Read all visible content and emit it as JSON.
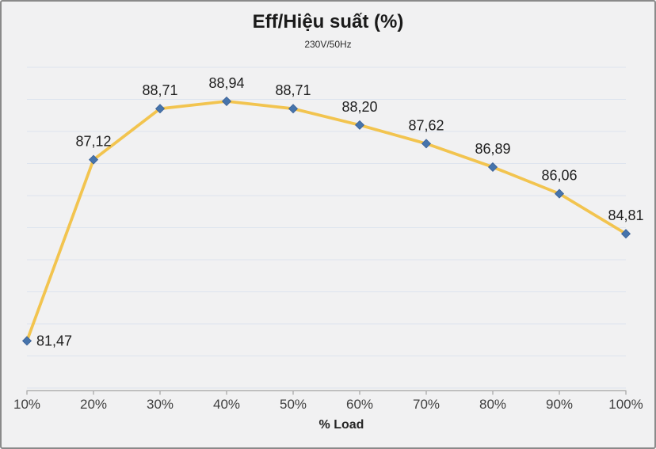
{
  "chart": {
    "title": "Eff/Hiệu suất (%)",
    "subtitle": "230V/50Hz",
    "xlabel": "% Load"
  },
  "chart_data": {
    "type": "line",
    "title": "Eff/Hiệu suất (%)",
    "subtitle": "230V/50Hz",
    "xlabel": "% Load",
    "ylabel": "",
    "categories": [
      "10%",
      "20%",
      "30%",
      "40%",
      "50%",
      "60%",
      "70%",
      "80%",
      "90%",
      "100%"
    ],
    "series": [
      {
        "name": "Eff/Hiệu suất (%) 230V/50Hz",
        "values": [
          81.47,
          87.12,
          88.71,
          88.94,
          88.71,
          88.2,
          87.62,
          86.89,
          86.06,
          84.81
        ]
      }
    ],
    "data_labels": [
      "81,47",
      "87,12",
      "88,71",
      "88,94",
      "88,71",
      "88,20",
      "87,62",
      "86,89",
      "86,06",
      "84,81"
    ],
    "label_positions": [
      "right",
      "above",
      "above",
      "above",
      "above",
      "above",
      "above",
      "above",
      "above",
      "above"
    ],
    "ylim": [
      80,
      90
    ],
    "y_gridline_step": 1,
    "y_axis_labels_visible": false,
    "grid": "horizontal",
    "legend_position": "none",
    "marker": "diamond",
    "colors": {
      "line": "#F2C44F",
      "marker_fill": "#4674AC",
      "marker_edge": "#3A5E93",
      "gridline": "#DDE4EE",
      "axis_line": "#A6A6A6",
      "axis_text": "#3F3F3F",
      "label_text": "#1F1F1F",
      "background": "#F1F1F2",
      "frame_border": "#8A8A8A"
    }
  }
}
